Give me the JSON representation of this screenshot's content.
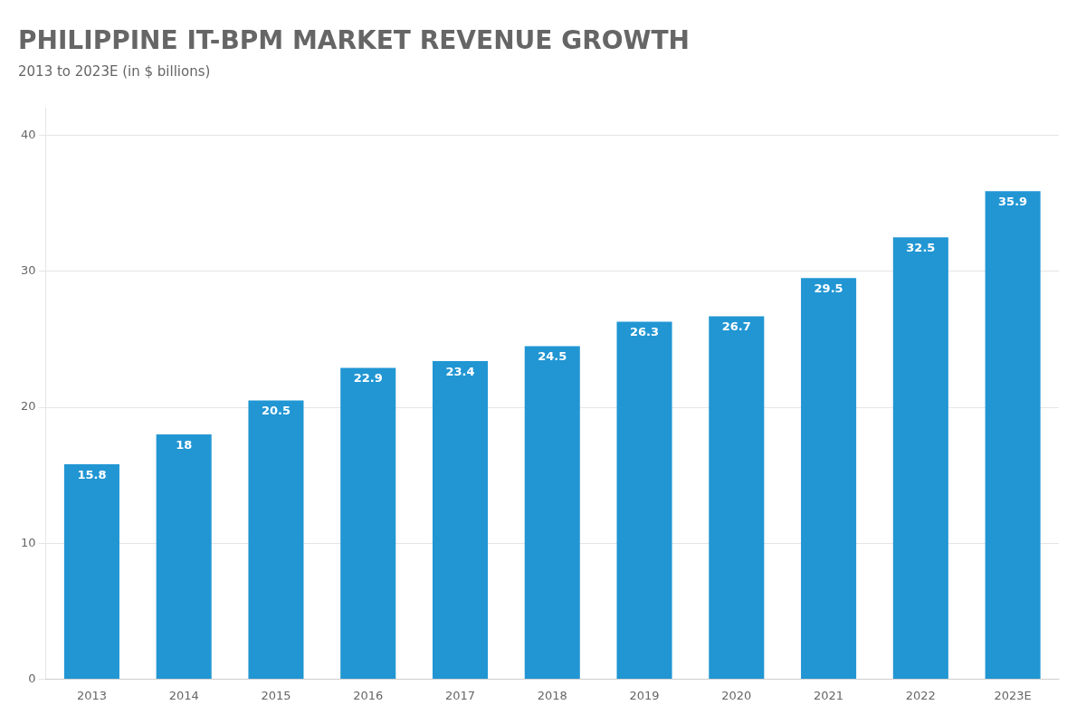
{
  "chart_data": {
    "type": "bar",
    "title": "PHILIPPINE IT-BPM MARKET REVENUE GROWTH",
    "subtitle": "2013 to 2023E (in $ billions)",
    "categories": [
      "2013",
      "2014",
      "2015",
      "2016",
      "2017",
      "2018",
      "2019",
      "2020",
      "2021",
      "2022",
      "2023E"
    ],
    "values": [
      15.8,
      18.0,
      20.5,
      22.9,
      23.4,
      24.5,
      26.3,
      26.7,
      29.5,
      32.5,
      35.9
    ],
    "color": "#2196d3",
    "ylim": [
      0,
      42
    ],
    "yticks": [
      0,
      10,
      20,
      30,
      40
    ],
    "grid": true,
    "data_labels": true
  }
}
